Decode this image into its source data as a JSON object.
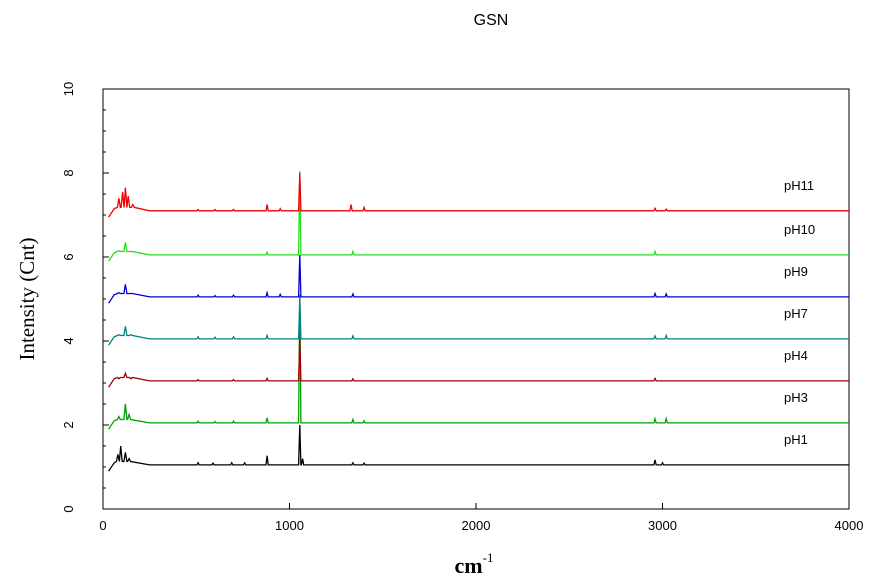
{
  "chart_data": {
    "type": "line",
    "title": "GSN",
    "xlabel": "cm",
    "xlabel_superscript": "-1",
    "ylabel": "Intensity (Cnt)",
    "xlim": [
      0,
      4000
    ],
    "ylim": [
      0,
      10
    ],
    "xticks": [
      0,
      1000,
      2000,
      3000,
      4000
    ],
    "yticks": [
      0,
      2,
      4,
      6,
      8,
      10
    ],
    "xtick_labels": [
      "0",
      "1000",
      "2000",
      "3000",
      "4000"
    ],
    "ytick_labels": [
      "0",
      "2",
      "4",
      "6",
      "8",
      "10"
    ],
    "grid": false,
    "legend": "series labels at right end of each trace",
    "series": [
      {
        "name": "pH1",
        "color": "#000000",
        "baseline": 1.05,
        "peaks": [
          [
            80,
            0.25
          ],
          [
            95,
            0.45
          ],
          [
            120,
            0.3
          ],
          [
            140,
            0.15
          ],
          [
            510,
            0.05
          ],
          [
            590,
            0.04
          ],
          [
            690,
            0.05
          ],
          [
            760,
            0.05
          ],
          [
            880,
            0.22
          ],
          [
            1055,
            0.95
          ],
          [
            1070,
            0.15
          ],
          [
            1340,
            0.05
          ],
          [
            1400,
            0.04
          ],
          [
            2960,
            0.12
          ],
          [
            3000,
            0.05
          ]
        ]
      },
      {
        "name": "pH3",
        "color": "#00a000",
        "baseline": 2.05,
        "peaks": [
          [
            85,
            0.15
          ],
          [
            120,
            0.45
          ],
          [
            140,
            0.2
          ],
          [
            510,
            0.04
          ],
          [
            600,
            0.03
          ],
          [
            700,
            0.04
          ],
          [
            880,
            0.12
          ],
          [
            1055,
            3.05
          ],
          [
            1340,
            0.08
          ],
          [
            1400,
            0.05
          ],
          [
            2960,
            0.1
          ],
          [
            3020,
            0.1
          ]
        ]
      },
      {
        "name": "pH4",
        "color": "#a00000",
        "baseline": 3.05,
        "peaks": [
          [
            85,
            0.05
          ],
          [
            120,
            0.18
          ],
          [
            150,
            0.05
          ],
          [
            510,
            0.03
          ],
          [
            700,
            0.03
          ],
          [
            880,
            0.06
          ],
          [
            1055,
            1.0
          ],
          [
            1340,
            0.05
          ],
          [
            2960,
            0.06
          ]
        ]
      },
      {
        "name": "pH7",
        "color": "#008080",
        "baseline": 4.05,
        "peaks": [
          [
            85,
            0.1
          ],
          [
            120,
            0.3
          ],
          [
            150,
            0.1
          ],
          [
            510,
            0.05
          ],
          [
            600,
            0.04
          ],
          [
            700,
            0.05
          ],
          [
            880,
            0.08
          ],
          [
            1055,
            1.0
          ],
          [
            1340,
            0.07
          ],
          [
            2960,
            0.07
          ],
          [
            3020,
            0.08
          ]
        ]
      },
      {
        "name": "pH9",
        "color": "#0000d0",
        "baseline": 5.05,
        "peaks": [
          [
            85,
            0.1
          ],
          [
            120,
            0.3
          ],
          [
            150,
            0.08
          ],
          [
            510,
            0.04
          ],
          [
            600,
            0.03
          ],
          [
            700,
            0.04
          ],
          [
            880,
            0.1
          ],
          [
            950,
            0.06
          ],
          [
            1055,
            1.0
          ],
          [
            1340,
            0.07
          ],
          [
            2960,
            0.08
          ],
          [
            3020,
            0.07
          ]
        ]
      },
      {
        "name": "pH10",
        "color": "#22dd22",
        "baseline": 6.05,
        "peaks": [
          [
            85,
            0.1
          ],
          [
            120,
            0.3
          ],
          [
            150,
            0.08
          ],
          [
            880,
            0.06
          ],
          [
            1055,
            2.0
          ],
          [
            1340,
            0.08
          ],
          [
            2960,
            0.08
          ]
        ]
      },
      {
        "name": "pH11",
        "color": "#ee0000",
        "baseline": 7.1,
        "peaks": [
          [
            85,
            0.3
          ],
          [
            105,
            0.45
          ],
          [
            120,
            0.55
          ],
          [
            135,
            0.35
          ],
          [
            160,
            0.15
          ],
          [
            510,
            0.03
          ],
          [
            600,
            0.03
          ],
          [
            700,
            0.03
          ],
          [
            880,
            0.15
          ],
          [
            950,
            0.05
          ],
          [
            1055,
            0.9
          ],
          [
            1330,
            0.15
          ],
          [
            1400,
            0.08
          ],
          [
            2960,
            0.06
          ],
          [
            3020,
            0.04
          ]
        ]
      }
    ]
  }
}
